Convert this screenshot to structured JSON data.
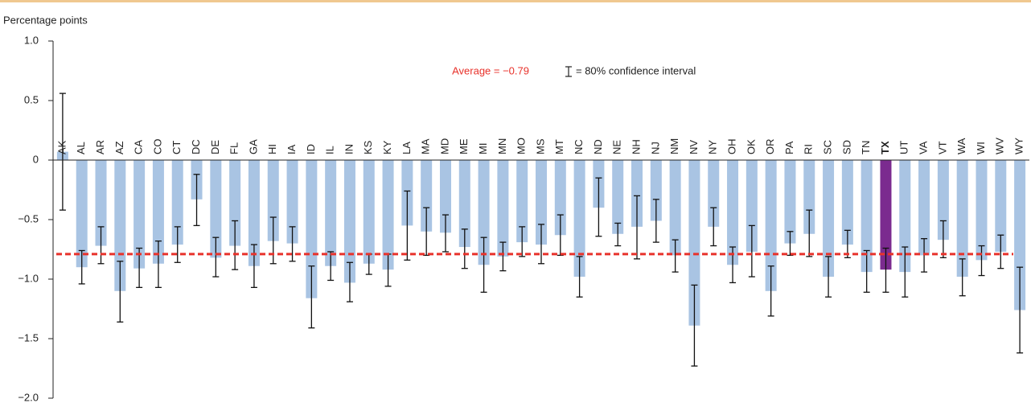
{
  "chart_data": {
    "type": "bar",
    "y_label": "Percentage points",
    "categories": [
      "AK",
      "AL",
      "AR",
      "AZ",
      "CA",
      "CO",
      "CT",
      "DC",
      "DE",
      "FL",
      "GA",
      "HI",
      "IA",
      "ID",
      "IL",
      "IN",
      "KS",
      "KY",
      "LA",
      "MA",
      "MD",
      "ME",
      "MI",
      "MN",
      "MO",
      "MS",
      "MT",
      "NC",
      "ND",
      "NE",
      "NH",
      "NJ",
      "NM",
      "NV",
      "NY",
      "OH",
      "OK",
      "OR",
      "PA",
      "RI",
      "SC",
      "SD",
      "TN",
      "TX",
      "UT",
      "VA",
      "VT",
      "WA",
      "WI",
      "WV",
      "WY"
    ],
    "values": [
      0.07,
      -0.9,
      -0.72,
      -1.1,
      -0.91,
      -0.87,
      -0.71,
      -0.33,
      -0.82,
      -0.72,
      -0.89,
      -0.68,
      -0.7,
      -1.16,
      -0.89,
      -1.03,
      -0.87,
      -0.92,
      -0.55,
      -0.6,
      -0.61,
      -0.73,
      -0.88,
      -0.81,
      -0.69,
      -0.71,
      -0.63,
      -0.98,
      -0.4,
      -0.62,
      -0.56,
      -0.51,
      -0.8,
      -1.39,
      -0.56,
      -0.88,
      -0.77,
      -1.1,
      -0.7,
      -0.62,
      -0.98,
      -0.71,
      -0.94,
      -0.92,
      -0.94,
      -0.8,
      -0.67,
      -0.98,
      -0.84,
      -0.77,
      -1.26
    ],
    "ci_high": [
      0.56,
      -0.76,
      -0.56,
      -0.85,
      -0.74,
      -0.68,
      -0.56,
      -0.12,
      -0.65,
      -0.51,
      -0.71,
      -0.48,
      -0.56,
      -0.89,
      -0.77,
      -0.86,
      -0.79,
      -0.79,
      -0.26,
      -0.4,
      -0.46,
      -0.58,
      -0.65,
      -0.69,
      -0.56,
      -0.54,
      -0.46,
      -0.81,
      -0.15,
      -0.53,
      -0.3,
      -0.33,
      -0.67,
      -1.05,
      -0.4,
      -0.73,
      -0.55,
      -0.89,
      -0.6,
      -0.42,
      -0.81,
      -0.59,
      -0.76,
      -0.74,
      -0.73,
      -0.66,
      -0.51,
      -0.83,
      -0.72,
      -0.63,
      -0.9
    ],
    "ci_low": [
      -0.42,
      -1.04,
      -0.87,
      -1.36,
      -1.07,
      -1.07,
      -0.86,
      -0.55,
      -0.98,
      -0.92,
      -1.07,
      -0.87,
      -0.85,
      -1.41,
      -1.01,
      -1.19,
      -0.96,
      -1.06,
      -0.84,
      -0.8,
      -0.77,
      -0.91,
      -1.11,
      -0.93,
      -0.81,
      -0.87,
      -0.8,
      -1.15,
      -0.64,
      -0.72,
      -0.83,
      -0.69,
      -0.94,
      -1.73,
      -0.72,
      -1.03,
      -0.98,
      -1.31,
      -0.8,
      -0.81,
      -1.15,
      -0.82,
      -1.11,
      -1.11,
      -1.15,
      -0.94,
      -0.82,
      -1.14,
      -0.97,
      -0.91,
      -1.62
    ],
    "color": "#a9c4e3",
    "highlight": {
      "category": "TX",
      "color": "#7b2b8f"
    },
    "average": -0.79,
    "average_label": "Average = −0.79",
    "average_color": "#e8322b",
    "ci_label": "= 80% confidence interval",
    "ylim": [
      -2,
      1
    ],
    "yticks": [
      {
        "value": 1,
        "label": "1.0"
      },
      {
        "value": 0.5,
        "label": "0.5"
      },
      0,
      {
        "value": -0.5,
        "label": "−0.5"
      },
      {
        "value": -1,
        "label": "−1.0"
      },
      {
        "value": -1.5,
        "label": "−1.5"
      },
      {
        "value": -2,
        "label": "−2.0"
      }
    ]
  }
}
